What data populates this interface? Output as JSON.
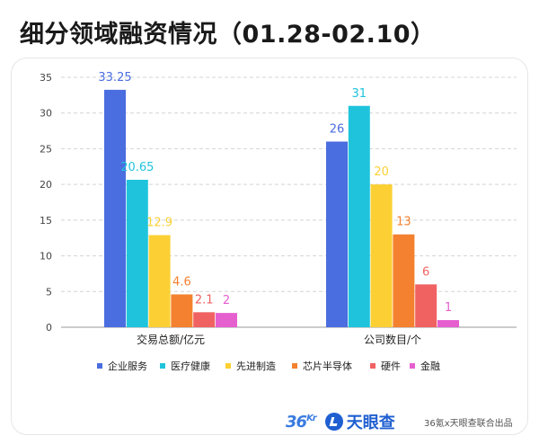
{
  "title": "细分领域融资情况（01.28-02.10）",
  "chart_data": {
    "type": "bar",
    "categories": [
      "交易总额/亿元",
      "公司数目/个"
    ],
    "series": [
      {
        "name": "企业服务",
        "values": [
          33.25,
          26
        ],
        "labels": [
          "33.25",
          "26"
        ],
        "color": "#4a6de0"
      },
      {
        "name": "医疗健康",
        "values": [
          20.65,
          31
        ],
        "labels": [
          "20.65",
          "31"
        ],
        "color": "#1fc4dc"
      },
      {
        "name": "先进制造",
        "values": [
          12.9,
          20
        ],
        "labels": [
          "12.9",
          "20"
        ],
        "color": "#fcd034"
      },
      {
        "name": "芯片半导体",
        "values": [
          4.6,
          13
        ],
        "labels": [
          "4.6",
          "13"
        ],
        "color": "#f4812f"
      },
      {
        "name": "硬件",
        "values": [
          2.1,
          6
        ],
        "labels": [
          "2.1",
          "6"
        ],
        "color": "#f06262"
      },
      {
        "name": "金融",
        "values": [
          2,
          1
        ],
        "labels": [
          "2",
          "1"
        ],
        "color": "#e55fcf"
      }
    ],
    "ylim": [
      0,
      35
    ],
    "yticks": [
      0,
      5,
      10,
      15,
      20,
      25,
      30,
      35
    ],
    "grid": "dashed-horizontal",
    "legend_position": "bottom"
  },
  "footer": {
    "logo_36kr_main": "36",
    "logo_36kr_sup": "Kr",
    "logo_tyc_text": "天眼查",
    "credit": "36氪x天眼查联合出品"
  }
}
